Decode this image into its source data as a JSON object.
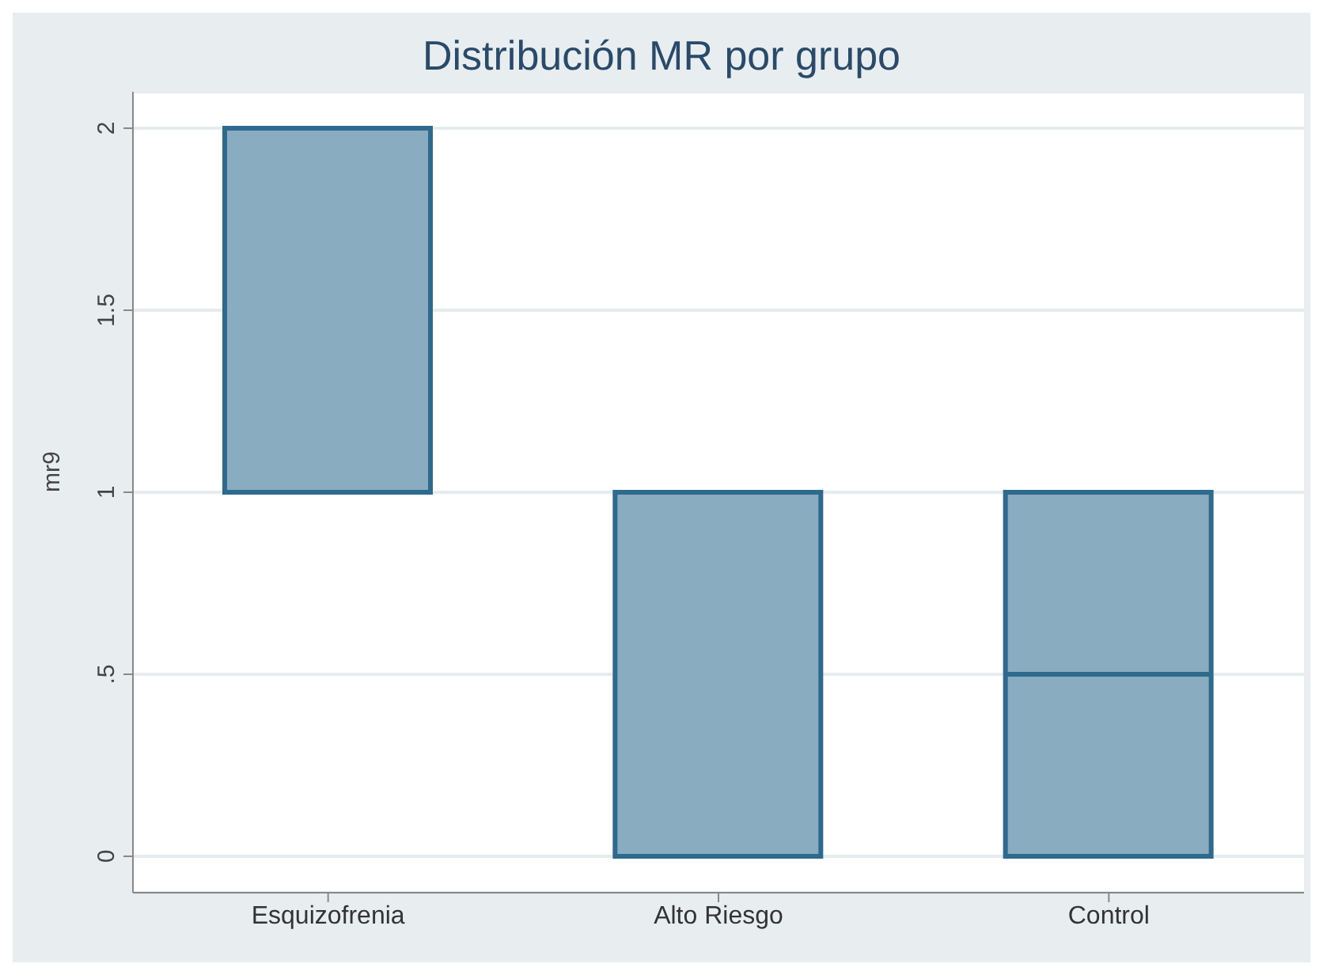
{
  "chart_data": {
    "type": "box",
    "title": "Distribución MR por grupo",
    "ylabel": "mr9",
    "categories": [
      "Esquizofrenia",
      "Alto Riesgo",
      "Control"
    ],
    "boxes": [
      {
        "low": 1,
        "q1": 1,
        "median": 2,
        "q3": 2,
        "high": 2
      },
      {
        "low": 0,
        "q1": 0,
        "median": 1,
        "q3": 1,
        "high": 1
      },
      {
        "low": 0,
        "q1": 0,
        "median": 0.5,
        "q3": 1,
        "high": 1
      }
    ],
    "color": "#8aacc0",
    "ylim": [
      -0.1,
      2.1
    ],
    "yticks": [
      0,
      {
        "value": 0.5,
        "label": ".5"
      },
      1,
      {
        "value": 1.5,
        "label": "1.5"
      },
      2
    ],
    "grid": "y"
  }
}
